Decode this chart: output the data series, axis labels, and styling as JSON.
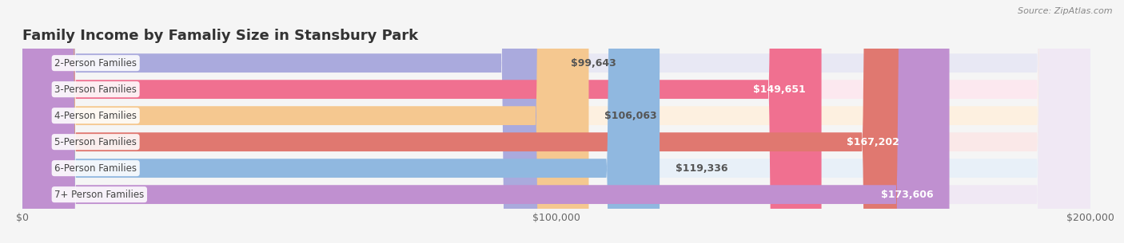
{
  "title": "Family Income by Famaliy Size in Stansbury Park",
  "source": "Source: ZipAtlas.com",
  "categories": [
    "2-Person Families",
    "3-Person Families",
    "4-Person Families",
    "5-Person Families",
    "6-Person Families",
    "7+ Person Families"
  ],
  "values": [
    99643,
    149651,
    106063,
    167202,
    119336,
    173606
  ],
  "bar_colors": [
    "#aaaadd",
    "#f07090",
    "#f5c890",
    "#e07870",
    "#90b8e0",
    "#c090d0"
  ],
  "bar_bg_colors": [
    "#e8e8f4",
    "#fce8ef",
    "#fdf0e0",
    "#fae8e8",
    "#e8f0f8",
    "#f0e8f4"
  ],
  "xlim": [
    0,
    200000
  ],
  "xticks": [
    0,
    100000,
    200000
  ],
  "xtick_labels": [
    "$0",
    "$100,000",
    "$200,000"
  ],
  "label_inside_threshold": 120000,
  "background_color": "#f5f5f5",
  "title_fontsize": 13,
  "bar_label_fontsize": 9,
  "tick_fontsize": 9,
  "category_fontsize": 8.5
}
